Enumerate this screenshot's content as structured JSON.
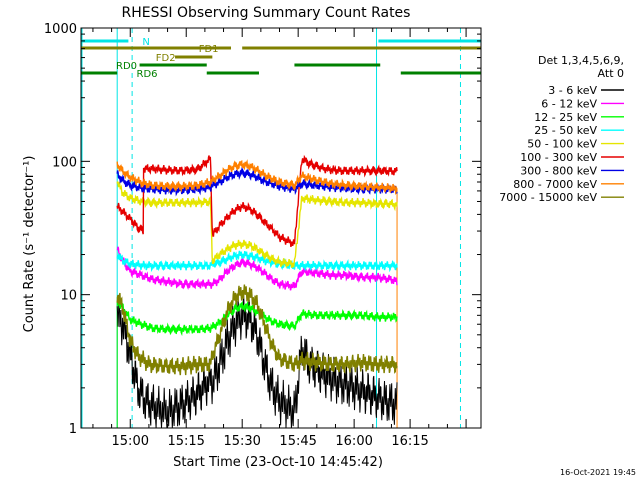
{
  "chart_data": {
    "type": "line",
    "title": "RHESSI Observing Summary Count Rates",
    "xlabel": "Start Time (23-Oct-10 14:45:42)",
    "ylabel": "Count Rate (s⁻¹ detector⁻¹)",
    "yscale": "log",
    "ylim": [
      1,
      1000
    ],
    "xlim_minutes": [
      -13.2,
      94.0
    ],
    "grid": false,
    "x_ticks": [
      {
        "t": 0,
        "label": "15:00"
      },
      {
        "t": 15,
        "label": "15:15"
      },
      {
        "t": 30,
        "label": "15:30"
      },
      {
        "t": 45,
        "label": "15:45"
      },
      {
        "t": 60,
        "label": "16:00"
      },
      {
        "t": 75,
        "label": "16:15"
      }
    ],
    "y_ticks": [
      {
        "v": 1,
        "label": "1"
      },
      {
        "v": 10,
        "label": "10"
      },
      {
        "v": 100,
        "label": "100"
      },
      {
        "v": 1000,
        "label": "1000"
      }
    ],
    "legend": {
      "placement": "right",
      "header_line1": "Det 1,3,4,5,6,9,",
      "header_line2": "Att 0"
    },
    "observing_intervals": {
      "N": {
        "label": "N",
        "color": "#00e5e5",
        "segments": [
          [
            -13.2,
            -0.5
          ],
          [
            66.5,
            94.0
          ]
        ]
      },
      "FD1": {
        "label": "FD1",
        "color": "#808000",
        "segments": [
          [
            -13.2,
            27.0
          ],
          [
            30.0,
            94.0
          ]
        ]
      },
      "FD2": {
        "label": "FD2",
        "color": "#808000",
        "segments": [
          [
            12.0,
            22.0
          ]
        ]
      },
      "RD0": {
        "label": "RD0",
        "color": "#008000",
        "segments": [
          [
            2.5,
            20.5
          ],
          [
            44.0,
            67.0
          ]
        ]
      },
      "RD6": {
        "label": "RD6",
        "color": "#008000",
        "segments": [
          [
            -13.2,
            -3.5
          ],
          [
            20.5,
            34.5
          ],
          [
            72.5,
            94.0
          ]
        ]
      }
    },
    "saa_markers": {
      "solid": [
        -13.2,
        -3.5,
        66.0
      ],
      "dashed": [
        0.5,
        88.5
      ],
      "color": "#00e5e5"
    },
    "series": [
      {
        "name": "3 - 6 keV",
        "color": "#000000",
        "values": [
          [
            -3.5,
            7.0
          ],
          [
            -2,
            6.0
          ],
          [
            0,
            3.5
          ],
          [
            2,
            2.0
          ],
          [
            4,
            1.6
          ],
          [
            7,
            1.4
          ],
          [
            10,
            1.3
          ],
          [
            14,
            1.5
          ],
          [
            18,
            1.8
          ],
          [
            21.5,
            2.3
          ],
          [
            22,
            2.2
          ],
          [
            24,
            3.0
          ],
          [
            26,
            4.5
          ],
          [
            28,
            6.0
          ],
          [
            30,
            7.0
          ],
          [
            32,
            6.6
          ],
          [
            34,
            5.0
          ],
          [
            36,
            3.0
          ],
          [
            38,
            2.0
          ],
          [
            40,
            1.6
          ],
          [
            44,
            1.3
          ],
          [
            46,
            4.0
          ],
          [
            48,
            3.0
          ],
          [
            52,
            2.5
          ],
          [
            56,
            2.2
          ],
          [
            60,
            2.0
          ],
          [
            64,
            1.8
          ],
          [
            68,
            1.6
          ],
          [
            71.5,
            1.5
          ]
        ]
      },
      {
        "name": "6 - 12 keV",
        "color": "#ff00ff",
        "values": [
          [
            -3.5,
            22
          ],
          [
            -2,
            18
          ],
          [
            0,
            15
          ],
          [
            3,
            14
          ],
          [
            6,
            13
          ],
          [
            10,
            12.5
          ],
          [
            14,
            12
          ],
          [
            18,
            12
          ],
          [
            21.5,
            12
          ],
          [
            22,
            12
          ],
          [
            24,
            13
          ],
          [
            26,
            15
          ],
          [
            28,
            16.5
          ],
          [
            30,
            17.5
          ],
          [
            32,
            17
          ],
          [
            34,
            16
          ],
          [
            36,
            14.5
          ],
          [
            38,
            13
          ],
          [
            40,
            12
          ],
          [
            44,
            11.5
          ],
          [
            46,
            15
          ],
          [
            50,
            14.5
          ],
          [
            54,
            14
          ],
          [
            58,
            14
          ],
          [
            62,
            13.5
          ],
          [
            66,
            13.5
          ],
          [
            70,
            13
          ],
          [
            71.5,
            12.5
          ]
        ]
      },
      {
        "name": "12 - 25 keV",
        "color": "#00ff00",
        "values": [
          [
            -3.5,
            9.0
          ],
          [
            -2,
            8.0
          ],
          [
            0,
            6.5
          ],
          [
            3,
            6.0
          ],
          [
            6,
            5.6
          ],
          [
            10,
            5.5
          ],
          [
            14,
            5.5
          ],
          [
            18,
            5.5
          ],
          [
            21.5,
            5.6
          ],
          [
            22,
            5.7
          ],
          [
            24,
            6.2
          ],
          [
            26,
            7.0
          ],
          [
            28,
            7.8
          ],
          [
            30,
            8.2
          ],
          [
            32,
            8.0
          ],
          [
            34,
            7.4
          ],
          [
            36,
            6.8
          ],
          [
            38,
            6.3
          ],
          [
            40,
            6.0
          ],
          [
            44,
            5.8
          ],
          [
            46,
            7.2
          ],
          [
            50,
            7.0
          ],
          [
            54,
            7.0
          ],
          [
            58,
            7.0
          ],
          [
            62,
            7.0
          ],
          [
            66,
            6.8
          ],
          [
            70,
            6.8
          ],
          [
            71.5,
            6.8
          ]
        ]
      },
      {
        "name": "25 - 50 keV",
        "color": "#00ffff",
        "values": [
          [
            -3.5,
            20
          ],
          [
            -2,
            18
          ],
          [
            0,
            17
          ],
          [
            4,
            16.5
          ],
          [
            8,
            16.5
          ],
          [
            12,
            16.5
          ],
          [
            16,
            16.5
          ],
          [
            21.5,
            16.5
          ],
          [
            22,
            17
          ],
          [
            24,
            17.5
          ],
          [
            26,
            18.5
          ],
          [
            28,
            19.5
          ],
          [
            30,
            20
          ],
          [
            32,
            19.5
          ],
          [
            34,
            19
          ],
          [
            36,
            18
          ],
          [
            38,
            17.5
          ],
          [
            40,
            17
          ],
          [
            44,
            16.5
          ],
          [
            46,
            16.5
          ],
          [
            50,
            16.5
          ],
          [
            54,
            16.5
          ],
          [
            58,
            16.5
          ],
          [
            62,
            16.5
          ],
          [
            66,
            16.5
          ],
          [
            70,
            16.5
          ],
          [
            71.5,
            16.5
          ]
        ]
      },
      {
        "name": "50 - 100 keV",
        "color": "#e5e500",
        "values": [
          [
            -3.5,
            70
          ],
          [
            -2,
            58
          ],
          [
            0,
            53
          ],
          [
            3,
            50
          ],
          [
            6,
            49
          ],
          [
            10,
            49
          ],
          [
            14,
            49
          ],
          [
            18,
            49
          ],
          [
            21.5,
            50
          ],
          [
            22,
            18
          ],
          [
            24,
            20
          ],
          [
            26,
            22
          ],
          [
            28,
            23.5
          ],
          [
            30,
            24
          ],
          [
            32,
            23.5
          ],
          [
            34,
            22
          ],
          [
            36,
            20
          ],
          [
            38,
            18.5
          ],
          [
            40,
            17.5
          ],
          [
            44,
            17
          ],
          [
            46,
            53
          ],
          [
            50,
            51
          ],
          [
            54,
            50
          ],
          [
            58,
            49
          ],
          [
            62,
            49
          ],
          [
            66,
            48
          ],
          [
            70,
            48
          ],
          [
            71.5,
            47
          ]
        ]
      },
      {
        "name": "100 - 300 keV",
        "color": "#e50000",
        "values": [
          [
            -3.5,
            46
          ],
          [
            -2,
            42
          ],
          [
            0,
            37
          ],
          [
            2,
            32
          ],
          [
            3.5,
            30
          ],
          [
            3.5,
            88
          ],
          [
            6,
            88
          ],
          [
            10,
            86
          ],
          [
            14,
            85
          ],
          [
            18,
            87
          ],
          [
            21.5,
            105
          ],
          [
            22,
            28
          ],
          [
            24,
            33
          ],
          [
            26,
            38
          ],
          [
            28,
            43
          ],
          [
            30,
            46
          ],
          [
            32,
            44
          ],
          [
            34,
            40
          ],
          [
            36,
            35
          ],
          [
            38,
            31
          ],
          [
            40,
            27
          ],
          [
            44,
            24
          ],
          [
            46,
            105
          ],
          [
            48,
            96
          ],
          [
            52,
            88
          ],
          [
            56,
            85
          ],
          [
            60,
            85
          ],
          [
            64,
            85
          ],
          [
            68,
            85
          ],
          [
            71.5,
            84
          ]
        ]
      },
      {
        "name": "300 - 800 keV",
        "color": "#0000e5",
        "values": [
          [
            -3.5,
            80
          ],
          [
            -2,
            72
          ],
          [
            0,
            66
          ],
          [
            3,
            63
          ],
          [
            6,
            62
          ],
          [
            10,
            61
          ],
          [
            14,
            61
          ],
          [
            18,
            62
          ],
          [
            21.5,
            64
          ],
          [
            22,
            66
          ],
          [
            24,
            70
          ],
          [
            26,
            76
          ],
          [
            28,
            80
          ],
          [
            30,
            82
          ],
          [
            32,
            80
          ],
          [
            34,
            76
          ],
          [
            36,
            71
          ],
          [
            38,
            68
          ],
          [
            40,
            65
          ],
          [
            44,
            62
          ],
          [
            46,
            68
          ],
          [
            50,
            66
          ],
          [
            54,
            64
          ],
          [
            58,
            63
          ],
          [
            62,
            62
          ],
          [
            66,
            62
          ],
          [
            70,
            62
          ],
          [
            71.5,
            61
          ]
        ]
      },
      {
        "name": "800 - 7000 keV",
        "color": "#ff8000",
        "values": [
          [
            -3.5,
            95
          ],
          [
            -2,
            84
          ],
          [
            0,
            76
          ],
          [
            3,
            69
          ],
          [
            6,
            66
          ],
          [
            10,
            65
          ],
          [
            14,
            65
          ],
          [
            18,
            66
          ],
          [
            21.5,
            70
          ],
          [
            22,
            72
          ],
          [
            24,
            78
          ],
          [
            26,
            86
          ],
          [
            28,
            92
          ],
          [
            30,
            95
          ],
          [
            32,
            92
          ],
          [
            34,
            86
          ],
          [
            36,
            79
          ],
          [
            38,
            74
          ],
          [
            40,
            70
          ],
          [
            44,
            66
          ],
          [
            46,
            78
          ],
          [
            50,
            72
          ],
          [
            54,
            68
          ],
          [
            58,
            66
          ],
          [
            62,
            65
          ],
          [
            66,
            64
          ],
          [
            70,
            63
          ],
          [
            71.5,
            62
          ]
        ]
      },
      {
        "name": "7000 - 15000 keV",
        "color": "#808000",
        "values": [
          [
            -3.5,
            10
          ],
          [
            -2,
            8.0
          ],
          [
            0,
            4.5
          ],
          [
            2,
            3.5
          ],
          [
            5,
            3.0
          ],
          [
            10,
            2.9
          ],
          [
            14,
            2.9
          ],
          [
            18,
            3.0
          ],
          [
            21.5,
            3.0
          ],
          [
            22,
            3.5
          ],
          [
            24,
            5.0
          ],
          [
            26,
            7.5
          ],
          [
            28,
            9.5
          ],
          [
            30,
            10.5
          ],
          [
            32,
            10
          ],
          [
            34,
            8.5
          ],
          [
            36,
            6.0
          ],
          [
            38,
            4.2
          ],
          [
            40,
            3.3
          ],
          [
            44,
            3.0
          ],
          [
            46,
            3.2
          ],
          [
            50,
            3.1
          ],
          [
            54,
            3.0
          ],
          [
            58,
            3.0
          ],
          [
            62,
            3.1
          ],
          [
            66,
            3.0
          ],
          [
            70,
            3.0
          ],
          [
            71.5,
            3.0
          ]
        ]
      }
    ]
  },
  "footer": {
    "datestamp": "16-Oct-2021 19:45"
  }
}
